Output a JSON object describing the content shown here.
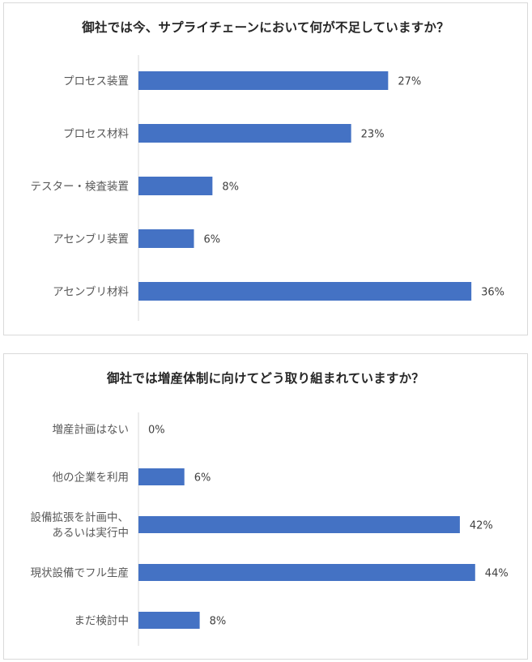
{
  "chart_data": [
    {
      "type": "bar",
      "orientation": "horizontal",
      "title": "御社では今、サプライチェーンにおいて何が不足していますか？",
      "categories": [
        "プロセス装置",
        "プロセス材料",
        "テスター・検査装置",
        "アセンブリ装置",
        "アセンブリ材料"
      ],
      "values": [
        27,
        23,
        8,
        6,
        36
      ],
      "value_labels": [
        "27%",
        "23%",
        "8%",
        "6%",
        "36%"
      ],
      "unit": "%",
      "bar_color": "#4472C4",
      "grid": false,
      "legend": "none"
    },
    {
      "type": "bar",
      "orientation": "horizontal",
      "title": "御社では増産体制に向けてどう取り組まれていますか？",
      "categories": [
        [
          "増産計画はない"
        ],
        [
          "他の企業を利用"
        ],
        [
          "設備拡張を計画中、",
          "あるいは実行中"
        ],
        [
          "現状設備でフル生産"
        ],
        [
          "まだ検討中"
        ]
      ],
      "values": [
        0,
        6,
        42,
        44,
        8
      ],
      "value_labels": [
        "0%",
        "6%",
        "42%",
        "44%",
        "8%"
      ],
      "unit": "%",
      "bar_color": "#4472C4",
      "grid": false,
      "legend": "none"
    }
  ]
}
